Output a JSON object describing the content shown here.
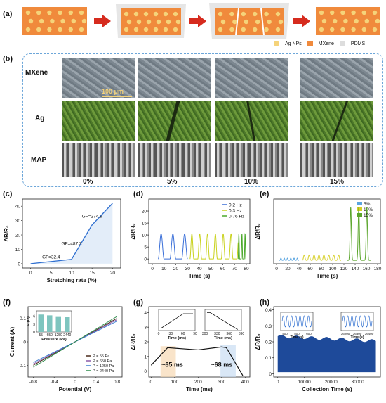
{
  "panel_labels": {
    "a": "(a)",
    "b": "(b)",
    "c": "(c)",
    "d": "(d)",
    "e": "(e)",
    "f": "(f)",
    "g": "(g)",
    "h": "(h)"
  },
  "legend_a": {
    "ag": "Ag NPs",
    "mxene": "MXene",
    "pdms": "PDMS"
  },
  "rows": {
    "mxene": "MXene",
    "ag": "Ag",
    "map": "MAP"
  },
  "strains": [
    "0%",
    "5%",
    "10%",
    "15%"
  ],
  "scalebar": "100 μm",
  "colors": {
    "orange": "#f08a3c",
    "yellow": "#f5d37a",
    "dashed": "#6ca6d9",
    "arrow": "#d62b1e"
  },
  "chart_data": [
    {
      "id": "c",
      "type": "line",
      "xlabel": "Stretching rate (%)",
      "ylabel": "ΔR/R₀",
      "x": [
        0,
        10,
        15,
        20
      ],
      "y": [
        0,
        3,
        27,
        42
      ],
      "xlim": [
        -2,
        22
      ],
      "ylim": [
        -3,
        45
      ],
      "xticks": [
        0,
        5,
        10,
        15,
        20
      ],
      "yticks": [
        0,
        10,
        20,
        30,
        40
      ],
      "annotations": [
        "GF=32.4",
        "GF=487.3",
        "GF=274.9"
      ]
    },
    {
      "id": "d",
      "type": "line",
      "xlabel": "Time (s)",
      "ylabel": "ΔR/R₀",
      "xlim": [
        -3,
        83
      ],
      "ylim": [
        -2,
        25
      ],
      "xticks": [
        0,
        10,
        20,
        30,
        40,
        50,
        60,
        70,
        80
      ],
      "yticks": [
        0,
        5,
        10,
        15,
        20
      ],
      "series": [
        {
          "name": "0.2 Hz",
          "color": "#3a6fd8",
          "t0": 5,
          "t1": 30,
          "f": 0.2
        },
        {
          "name": "0.3 Hz",
          "color": "#c9d21d",
          "t0": 32,
          "t1": 73,
          "f": 0.3
        },
        {
          "name": "0.76 Hz",
          "color": "#4aa82a",
          "t0": 73,
          "t1": 80,
          "f": 0.76
        }
      ],
      "amp": 10.5
    },
    {
      "id": "e",
      "type": "line",
      "xlabel": "Time (s)",
      "ylabel": "ΔR/R₀",
      "xlim": [
        -5,
        185
      ],
      "ylim": [
        -2,
        36
      ],
      "xticks": [
        0,
        20,
        40,
        60,
        80,
        100,
        120,
        140,
        160,
        180
      ],
      "series": [
        {
          "name": "5%",
          "color": "#5aa5e0",
          "t0": 5,
          "t1": 40,
          "amp": 1.3,
          "n": 6
        },
        {
          "name": "10%",
          "color": "#d6cf22",
          "t0": 45,
          "t1": 115,
          "amp": 3.2,
          "n": 8
        },
        {
          "name": "15%",
          "color": "#5aa52a",
          "t0": 125,
          "t1": 168,
          "amp": 31,
          "n": 3
        }
      ]
    },
    {
      "id": "f",
      "type": "line",
      "xlabel": "Potential (V)",
      "ylabel": "Current (A)",
      "xlim": [
        -0.9,
        0.9
      ],
      "ylim": [
        -0.15,
        0.15
      ],
      "xticks": [
        -0.8,
        -0.4,
        0.0,
        0.4,
        0.8
      ],
      "yticks": [
        -0.1,
        0.0,
        0.1
      ],
      "series": [
        {
          "name": "P = 55 Pa",
          "color": "#4b2a1a",
          "slope": 0.125
        },
        {
          "name": "P = 650 Pa",
          "color": "#8a5aa8",
          "slope": 0.118
        },
        {
          "name": "P = 1250 Pa",
          "color": "#3d7fd0",
          "slope": 0.11
        },
        {
          "name": "P = 2440 Pa",
          "color": "#2c8a4a",
          "slope": 0.135
        }
      ],
      "inset": {
        "categories": [
          "55",
          "650",
          "1250",
          "2440"
        ],
        "values": [
          6.6,
          6.3,
          5.7,
          5.6
        ],
        "xlabel": "Pressure (Pa)",
        "ylabel": "R (Ω)",
        "yticks": [
          0,
          3,
          6
        ]
      }
    },
    {
      "id": "g",
      "type": "line",
      "xlabel": "Time (ms)",
      "ylabel": "ΔR/R₀",
      "xlim": [
        -10,
        420
      ],
      "ylim": [
        -0.4,
        4.4
      ],
      "xticks": [
        0,
        100,
        200,
        300,
        400
      ],
      "yticks": [
        0,
        1,
        2,
        3,
        4
      ],
      "x": [
        0,
        70,
        200,
        300,
        320,
        390
      ],
      "y": [
        0.4,
        1.6,
        1.45,
        1.65,
        1.6,
        -0.3
      ],
      "annotations": [
        "~65 ms",
        "~68 ms"
      ],
      "inset1": {
        "xticks": [
          "0",
          "30",
          "60",
          "90"
        ],
        "xlabel": "Time (ms)"
      },
      "inset2": {
        "xticks": [
          "300",
          "330",
          "360",
          "390"
        ],
        "xlabel": "Time (ms)"
      }
    },
    {
      "id": "h",
      "type": "area",
      "xlabel": "Collection Time (s)",
      "ylabel": "ΔR/R₀",
      "xlim": [
        -1500,
        38500
      ],
      "ylim": [
        -0.02,
        0.42
      ],
      "xticks": [
        0,
        10000,
        20000,
        30000
      ],
      "yticks": [
        0.0,
        0.1,
        0.2,
        0.3,
        0.4
      ],
      "inset1": {
        "xticks": [
          "400",
          "500",
          "600"
        ],
        "xlabel": "Time (s)"
      },
      "inset2": {
        "xticks": [
          "36200",
          "36300",
          "36400"
        ],
        "xlabel": "Time (s)"
      }
    }
  ]
}
